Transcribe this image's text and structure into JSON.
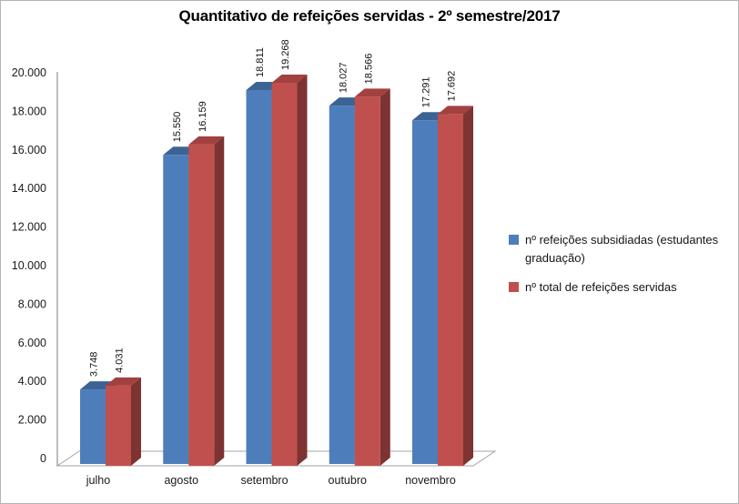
{
  "window": {
    "background": "#ffffff",
    "border_color": "#b3b3b3"
  },
  "title": {
    "text": "Quantitativo de refeições servidas - 2º semestre/2017"
  },
  "legend": {
    "position": "right",
    "items": [
      {
        "label": "nº refeições subsidiadas (estudantes graduação)",
        "color": "#4d7ebb"
      },
      {
        "label": "nº total de refeições servidas",
        "color": "#bf4f4c"
      }
    ]
  },
  "chart_data": {
    "type": "bar",
    "subtype": "3d-clustered-column",
    "title": "Quantitativo de refeições servidas - 2º semestre/2017",
    "categories": [
      "julho",
      "agosto",
      "setembro",
      "outubro",
      "novembro"
    ],
    "series": [
      {
        "name": "nº refeições subsidiadas (estudantes graduação)",
        "values": [
          3748,
          15550,
          18811,
          18027,
          17291
        ],
        "value_labels": [
          "3.748",
          "15.550",
          "18.811",
          "18.027",
          "17.291"
        ],
        "color_front": "#4d7ebb",
        "color_top": "#3c6394",
        "color_side": "#2f4e78"
      },
      {
        "name": "nº total de refeições servidas",
        "values": [
          4031,
          16159,
          19268,
          18566,
          17692
        ],
        "value_labels": [
          "4.031",
          "16.159",
          "19.268",
          "18.566",
          "17.692"
        ],
        "color_front": "#c0504d",
        "color_top": "#a2413f",
        "color_side": "#7c3331"
      }
    ],
    "xlabel": "",
    "ylabel": "",
    "ylim": [
      0,
      20000
    ],
    "ytick_step": 2000,
    "ytick_labels": [
      "0",
      "2.000",
      "4.000",
      "6.000",
      "8.000",
      "10.000",
      "12.000",
      "14.000",
      "16.000",
      "18.000",
      "20.000"
    ],
    "grid": false,
    "legend_position": "right",
    "axis_color": "#8f8f8f",
    "floor_color": "#a6a6a6",
    "tick_text_color": "#1a1a1a",
    "category_text_color": "#1a1a1a",
    "data_label_color": "#111111"
  }
}
